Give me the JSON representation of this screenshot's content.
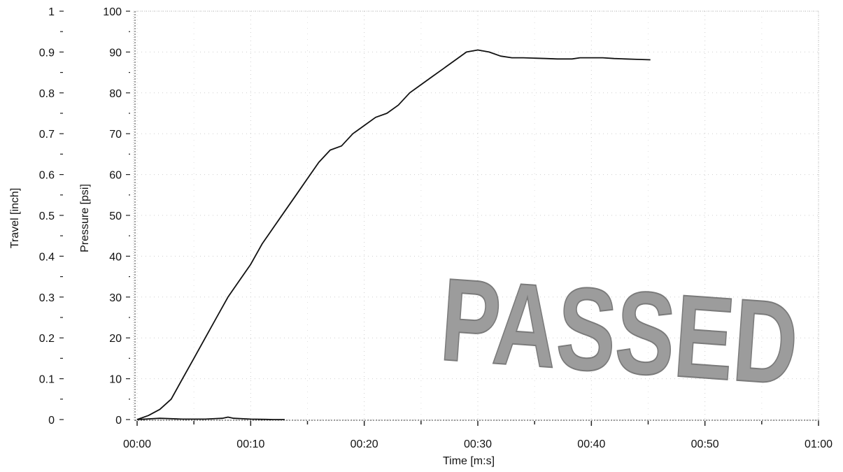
{
  "chart_data": {
    "type": "line",
    "xlabel": "Time [m:s]",
    "ylabel_left_outer": "Travel [inch]",
    "ylabel_left_inner": "Pressure [psi]",
    "x_ticks": [
      "00:00",
      "00:10",
      "00:20",
      "00:30",
      "00:40",
      "00:50",
      "01:00"
    ],
    "x_tick_values": [
      0,
      10,
      20,
      30,
      40,
      50,
      60
    ],
    "xlim": [
      0,
      60
    ],
    "pressure_ticks": [
      "0",
      "10",
      "20",
      "30",
      "40",
      "50",
      "60",
      "70",
      "80",
      "90",
      "100"
    ],
    "pressure_tick_values": [
      0,
      10,
      20,
      30,
      40,
      50,
      60,
      70,
      80,
      90,
      100
    ],
    "pressure_lim": [
      0,
      100
    ],
    "travel_ticks": [
      "0",
      "0.1",
      "0.2",
      "0.3",
      "0.4",
      "0.5",
      "0.6",
      "0.7",
      "0.8",
      "0.9",
      "1"
    ],
    "travel_tick_values": [
      0,
      0.1,
      0.2,
      0.3,
      0.4,
      0.5,
      0.6,
      0.7,
      0.8,
      0.9,
      1
    ],
    "travel_lim": [
      0,
      1
    ],
    "grid": true,
    "series": [
      {
        "axis": "pressure",
        "color": "#111111",
        "x": [
          0,
          1,
          2,
          3,
          4,
          5,
          6,
          7,
          8,
          9,
          10,
          11,
          12,
          13,
          14,
          15,
          16,
          17,
          18,
          19,
          20,
          21,
          22,
          23,
          24,
          25,
          26,
          27,
          28,
          29,
          30,
          31,
          32,
          33,
          34,
          35,
          36,
          37,
          37.7,
          38.3,
          39,
          40,
          41,
          42,
          43,
          44,
          45.2
        ],
        "y": [
          0,
          1,
          2.5,
          5,
          10,
          15,
          20,
          25,
          30,
          34,
          38,
          43,
          47,
          51,
          55,
          59,
          63,
          66,
          67,
          70,
          72,
          74,
          75,
          77,
          80,
          82,
          84,
          86,
          88,
          90,
          90.5,
          90,
          89,
          88.6,
          88.6,
          88.5,
          88.4,
          88.3,
          88.3,
          88.3,
          88.6,
          88.6,
          88.6,
          88.4,
          88.3,
          88.2,
          88.1
        ]
      },
      {
        "axis": "travel",
        "color": "#111111",
        "x": [
          0,
          2,
          4,
          6,
          7.5,
          8,
          8.5,
          10,
          12,
          13
        ],
        "y": [
          0,
          0.003,
          0.001,
          0.001,
          0.003,
          0.006,
          0.003,
          0.001,
          0,
          0
        ]
      }
    ],
    "annotations": [
      {
        "text": "PASSED",
        "kind": "stamp"
      }
    ]
  }
}
